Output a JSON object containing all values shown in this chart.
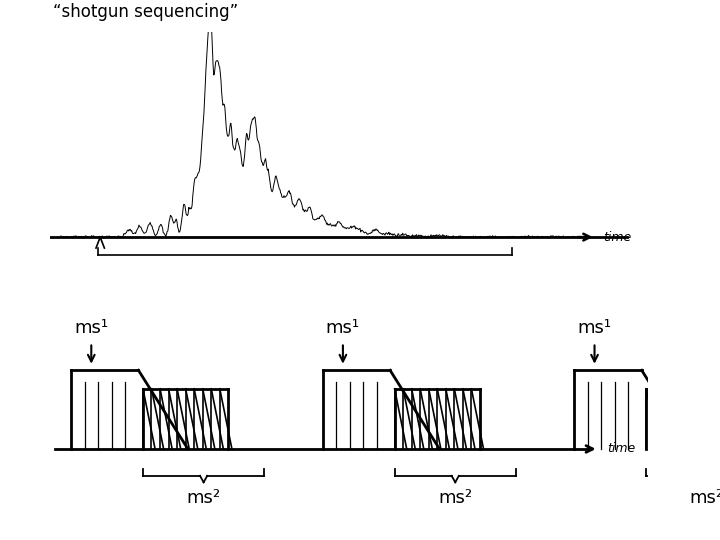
{
  "title": "“shotgun sequencing”",
  "time_label": "time",
  "ms1_label": "ms¹",
  "ms2_label": "ms²",
  "bg_color": "#ffffff",
  "line_color": "#000000",
  "num_cycles": 3,
  "n_ms2_teeth": 10,
  "peak_data": [
    [
      0.13,
      0.04,
      0.006
    ],
    [
      0.15,
      0.06,
      0.005
    ],
    [
      0.17,
      0.08,
      0.005
    ],
    [
      0.19,
      0.07,
      0.004
    ],
    [
      0.21,
      0.12,
      0.004
    ],
    [
      0.22,
      0.09,
      0.003
    ],
    [
      0.235,
      0.18,
      0.004
    ],
    [
      0.245,
      0.14,
      0.003
    ],
    [
      0.255,
      0.3,
      0.004
    ],
    [
      0.262,
      0.22,
      0.003
    ],
    [
      0.27,
      0.5,
      0.004
    ],
    [
      0.276,
      0.38,
      0.003
    ],
    [
      0.282,
      1.0,
      0.004
    ],
    [
      0.288,
      0.7,
      0.003
    ],
    [
      0.294,
      0.55,
      0.003
    ],
    [
      0.3,
      0.82,
      0.004
    ],
    [
      0.306,
      0.48,
      0.003
    ],
    [
      0.312,
      0.6,
      0.003
    ],
    [
      0.318,
      0.4,
      0.003
    ],
    [
      0.324,
      0.52,
      0.003
    ],
    [
      0.33,
      0.35,
      0.003
    ],
    [
      0.336,
      0.44,
      0.003
    ],
    [
      0.342,
      0.38,
      0.003
    ],
    [
      0.348,
      0.28,
      0.003
    ],
    [
      0.354,
      0.48,
      0.003
    ],
    [
      0.36,
      0.32,
      0.003
    ],
    [
      0.366,
      0.55,
      0.004
    ],
    [
      0.372,
      0.38,
      0.003
    ],
    [
      0.378,
      0.42,
      0.003
    ],
    [
      0.384,
      0.3,
      0.003
    ],
    [
      0.39,
      0.35,
      0.003
    ],
    [
      0.396,
      0.25,
      0.003
    ],
    [
      0.402,
      0.18,
      0.004
    ],
    [
      0.41,
      0.28,
      0.004
    ],
    [
      0.418,
      0.2,
      0.004
    ],
    [
      0.426,
      0.15,
      0.004
    ],
    [
      0.435,
      0.22,
      0.005
    ],
    [
      0.445,
      0.12,
      0.005
    ],
    [
      0.455,
      0.18,
      0.005
    ],
    [
      0.465,
      0.1,
      0.005
    ],
    [
      0.475,
      0.14,
      0.005
    ],
    [
      0.488,
      0.08,
      0.006
    ],
    [
      0.5,
      0.1,
      0.006
    ],
    [
      0.515,
      0.06,
      0.006
    ],
    [
      0.53,
      0.08,
      0.006
    ],
    [
      0.545,
      0.04,
      0.007
    ],
    [
      0.56,
      0.05,
      0.007
    ],
    [
      0.575,
      0.03,
      0.007
    ],
    [
      0.6,
      0.04,
      0.008
    ],
    [
      0.625,
      0.02,
      0.008
    ],
    [
      0.65,
      0.015,
      0.009
    ],
    [
      0.68,
      0.01,
      0.009
    ],
    [
      0.72,
      0.008,
      0.01
    ]
  ]
}
